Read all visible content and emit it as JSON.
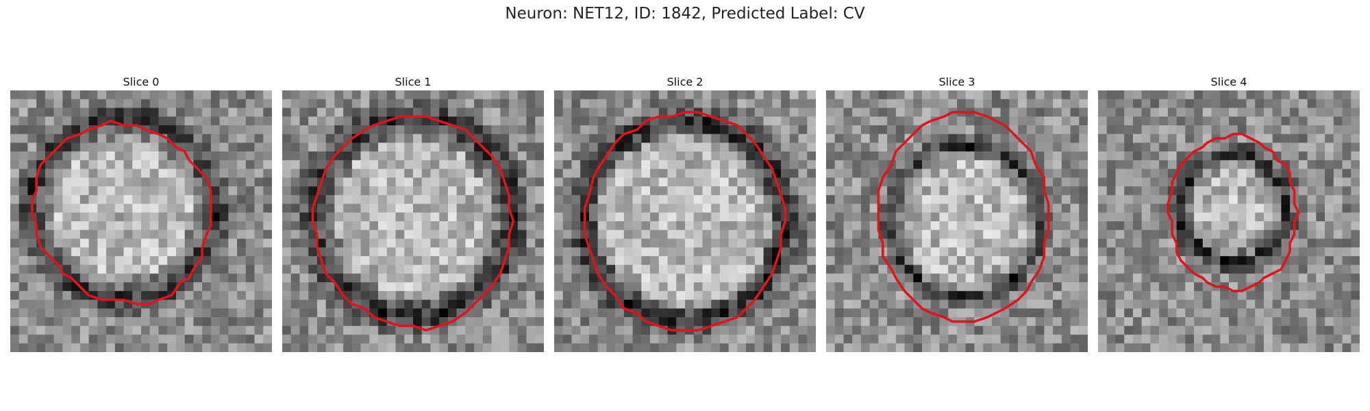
{
  "figure": {
    "title": "Neuron: NET12, ID: 1842, Predicted Label: CV"
  },
  "slices": [
    {
      "title": "Slice 0",
      "contour_color": "#e0151b",
      "grid_size": 30
    },
    {
      "title": "Slice 1",
      "contour_color": "#e0151b",
      "grid_size": 30
    },
    {
      "title": "Slice 2",
      "contour_color": "#e0151b",
      "grid_size": 30
    },
    {
      "title": "Slice 3",
      "contour_color": "#e0151b",
      "grid_size": 30
    },
    {
      "title": "Slice 4",
      "contour_color": "#e0151b",
      "grid_size": 30
    }
  ]
}
